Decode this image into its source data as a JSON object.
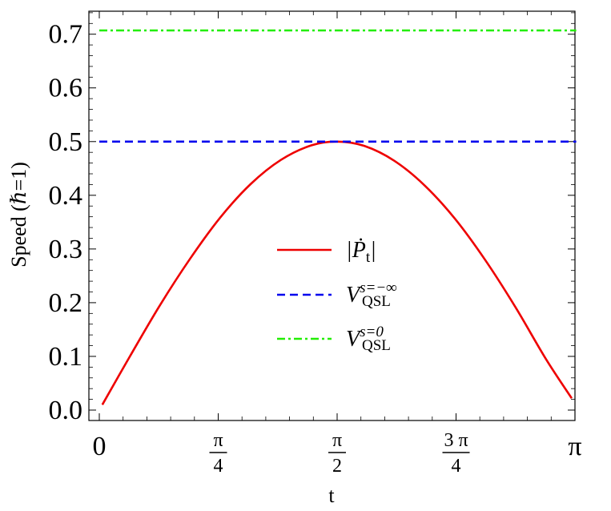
{
  "chart_data": {
    "type": "line",
    "xlabel": "t",
    "ylabel": "Speed (ℏ=1)",
    "xlim": [
      0,
      3.2
    ],
    "ylim": [
      0,
      0.74
    ],
    "x_ticks": [
      {
        "value": 0,
        "label": "0",
        "kind": "plain"
      },
      {
        "value": 0.7854,
        "num": "π",
        "den": "4",
        "kind": "fraction"
      },
      {
        "value": 1.5708,
        "num": "π",
        "den": "2",
        "kind": "fraction"
      },
      {
        "value": 2.3562,
        "num": "3 π",
        "den": "4",
        "kind": "fraction"
      },
      {
        "value": 3.1416,
        "label": "π",
        "kind": "plain"
      }
    ],
    "y_ticks": [
      {
        "value": 0.0,
        "label": "0.0"
      },
      {
        "value": 0.1,
        "label": "0.1"
      },
      {
        "value": 0.2,
        "label": "0.2"
      },
      {
        "value": 0.3,
        "label": "0.3"
      },
      {
        "value": 0.4,
        "label": "0.4"
      },
      {
        "value": 0.5,
        "label": "0.5"
      },
      {
        "value": 0.6,
        "label": "0.6"
      },
      {
        "value": 0.7,
        "label": "0.7"
      }
    ],
    "series": [
      {
        "name": "|Ṗt|",
        "legend": {
          "main": "|Ṗ",
          "sub": "t",
          "tail": "|",
          "sup": ""
        },
        "color": "#ee0000",
        "dash": "solid",
        "x": [
          0.02,
          0.2,
          0.4,
          0.6,
          0.8,
          1.0,
          1.2,
          1.4,
          1.5708,
          1.75,
          1.95,
          2.15,
          2.35,
          2.55,
          2.75,
          2.95,
          3.12
        ],
        "y": [
          0.01,
          0.099,
          0.195,
          0.282,
          0.359,
          0.421,
          0.466,
          0.493,
          0.5,
          0.492,
          0.464,
          0.418,
          0.356,
          0.279,
          0.191,
          0.095,
          0.022
        ]
      },
      {
        "name": "V_QSL^{s=−∞}",
        "legend": {
          "main": "V",
          "sub": "QSL",
          "tail": "",
          "sup": "s=−∞"
        },
        "color": "#0000ee",
        "dash": "dashed",
        "x": [
          0,
          3.15
        ],
        "y": [
          0.5,
          0.5
        ]
      },
      {
        "name": "V_QSL^{s=0}",
        "legend": {
          "main": "V",
          "sub": "QSL",
          "tail": "",
          "sup": "s=0"
        },
        "color": "#22ee00",
        "dash": "dashdot",
        "x": [
          0,
          3.15
        ],
        "y": [
          0.707,
          0.707
        ]
      }
    ],
    "grid": false,
    "legend_position": "center"
  }
}
